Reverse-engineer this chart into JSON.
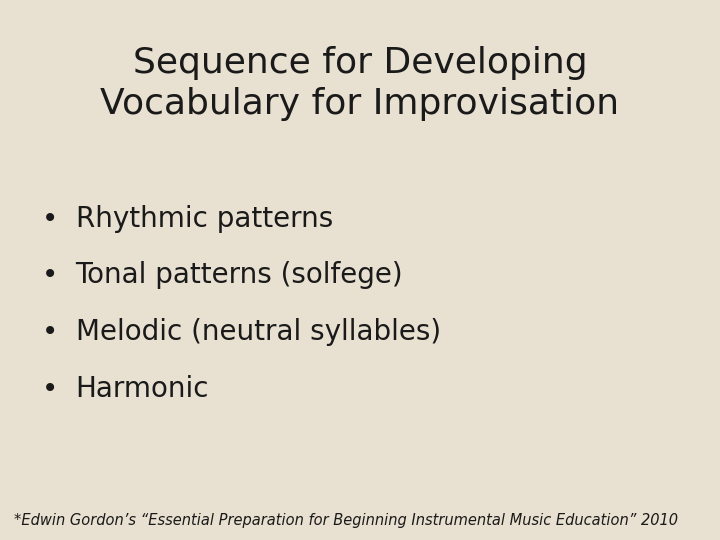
{
  "title_line1": "Sequence for Developing",
  "title_line2": "Vocabulary for Improvisation",
  "bullet_items": [
    "Rhythmic patterns",
    "Tonal patterns (solfege)",
    "Melodic (neutral syllables)",
    "Harmonic"
  ],
  "footer": "*Edwin Gordon’s “Essential Preparation for Beginning Instrumental Music Education” 2010",
  "background_color": "#e8e0d0",
  "text_color": "#1a1a1a",
  "title_fontsize": 26,
  "bullet_fontsize": 20,
  "footer_fontsize": 10.5
}
